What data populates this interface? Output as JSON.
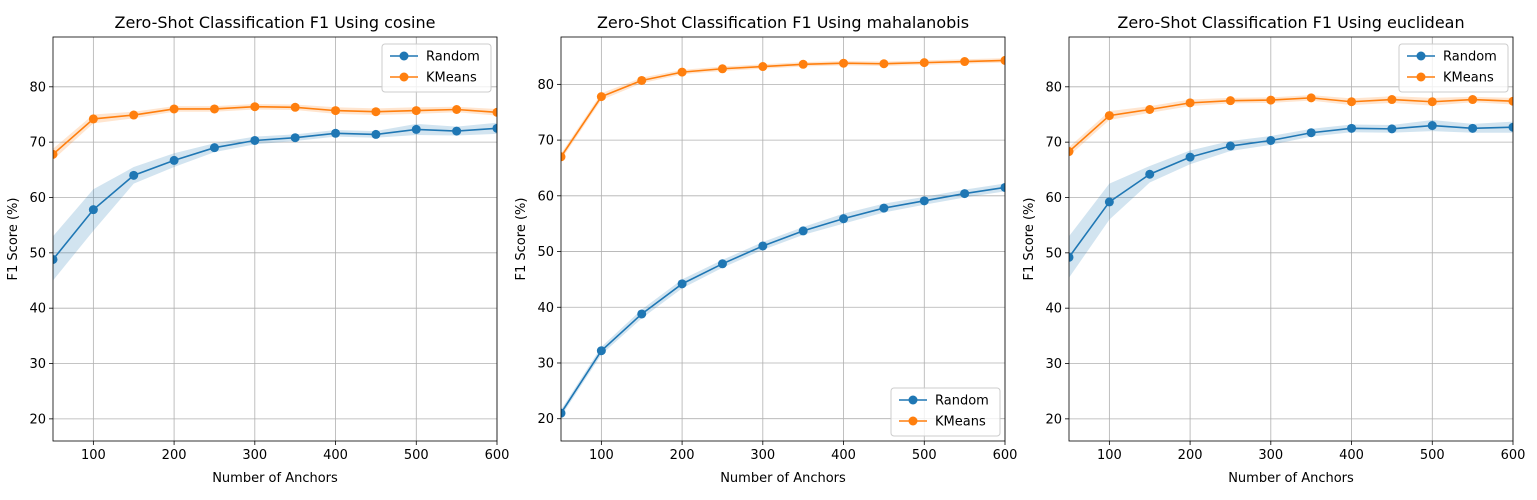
{
  "colors": {
    "random": "#1f77b4",
    "kmeans": "#ff7f0e",
    "grid": "#b0b0b0",
    "axis": "#000000"
  },
  "chart_data": [
    {
      "type": "line",
      "title": "Zero-Shot Classification F1 Using cosine",
      "xlabel": "Number of Anchors",
      "ylabel": "F1 Score (%)",
      "x": [
        50,
        100,
        150,
        200,
        250,
        300,
        350,
        400,
        450,
        500,
        550,
        600
      ],
      "xlim": [
        50,
        600
      ],
      "ylim": [
        16,
        89
      ],
      "xticks": [
        100,
        200,
        300,
        400,
        500,
        600
      ],
      "yticks": [
        20,
        30,
        40,
        50,
        60,
        70,
        80
      ],
      "grid": true,
      "legend_position": "top-right",
      "series": [
        {
          "name": "Random",
          "color": "#1f77b4",
          "values": [
            48.8,
            57.8,
            64.0,
            66.7,
            69.0,
            70.3,
            70.8,
            71.6,
            71.4,
            72.3,
            72.0,
            72.5
          ],
          "lower": [
            45.0,
            54.0,
            62.5,
            65.5,
            68.2,
            69.6,
            70.2,
            71.0,
            70.8,
            71.3,
            71.2,
            71.5
          ],
          "upper": [
            53.0,
            61.5,
            65.5,
            68.0,
            69.8,
            71.0,
            71.4,
            72.2,
            72.0,
            73.3,
            72.8,
            73.5
          ]
        },
        {
          "name": "KMeans",
          "color": "#ff7f0e",
          "values": [
            67.8,
            74.2,
            74.9,
            76.0,
            76.0,
            76.4,
            76.3,
            75.7,
            75.5,
            75.7,
            75.9,
            75.4
          ],
          "lower": [
            66.8,
            73.4,
            74.3,
            75.5,
            75.5,
            75.9,
            75.8,
            75.1,
            74.9,
            75.1,
            75.4,
            74.8
          ],
          "upper": [
            68.8,
            75.0,
            75.5,
            76.5,
            76.5,
            76.9,
            76.8,
            76.3,
            76.1,
            76.3,
            76.4,
            76.0
          ]
        }
      ]
    },
    {
      "type": "line",
      "title": "Zero-Shot Classification F1 Using mahalanobis",
      "xlabel": "Number of Anchors",
      "ylabel": "F1 Score (%)",
      "x": [
        50,
        100,
        150,
        200,
        250,
        300,
        350,
        400,
        450,
        500,
        550,
        600
      ],
      "xlim": [
        50,
        600
      ],
      "ylim": [
        16,
        88.5
      ],
      "xticks": [
        100,
        200,
        300,
        400,
        500,
        600
      ],
      "yticks": [
        20,
        30,
        40,
        50,
        60,
        70,
        80
      ],
      "grid": true,
      "legend_position": "bottom-right",
      "series": [
        {
          "name": "Random",
          "color": "#1f77b4",
          "values": [
            21.0,
            32.2,
            38.8,
            44.2,
            47.8,
            51.0,
            53.7,
            55.9,
            57.8,
            59.1,
            60.4,
            61.5
          ],
          "lower": [
            20.4,
            31.5,
            38.0,
            43.4,
            47.1,
            50.3,
            53.0,
            55.0,
            57.0,
            58.4,
            59.7,
            60.8
          ],
          "upper": [
            21.6,
            32.9,
            39.6,
            45.0,
            48.5,
            51.7,
            54.4,
            56.8,
            58.6,
            59.8,
            61.1,
            62.2
          ]
        },
        {
          "name": "KMeans",
          "color": "#ff7f0e",
          "values": [
            67.0,
            77.8,
            80.7,
            82.2,
            82.8,
            83.2,
            83.6,
            83.8,
            83.7,
            83.9,
            84.1,
            84.3
          ],
          "lower": [
            66.4,
            77.2,
            80.2,
            81.8,
            82.4,
            82.8,
            83.2,
            83.4,
            83.3,
            83.5,
            83.7,
            83.9
          ],
          "upper": [
            67.6,
            78.4,
            81.2,
            82.6,
            83.2,
            83.6,
            84.0,
            84.2,
            84.1,
            84.3,
            84.5,
            84.7
          ]
        }
      ]
    },
    {
      "type": "line",
      "title": "Zero-Shot Classification F1 Using euclidean",
      "xlabel": "Number of Anchors",
      "ylabel": "F1 Score (%)",
      "x": [
        50,
        100,
        150,
        200,
        250,
        300,
        350,
        400,
        450,
        500,
        550,
        600
      ],
      "xlim": [
        50,
        600
      ],
      "ylim": [
        16,
        89
      ],
      "xticks": [
        100,
        200,
        300,
        400,
        500,
        600
      ],
      "yticks": [
        20,
        30,
        40,
        50,
        60,
        70,
        80
      ],
      "grid": true,
      "legend_position": "top-right",
      "series": [
        {
          "name": "Random",
          "color": "#1f77b4",
          "values": [
            49.2,
            59.2,
            64.2,
            67.3,
            69.3,
            70.3,
            71.7,
            72.5,
            72.4,
            73.0,
            72.5,
            72.7
          ],
          "lower": [
            45.5,
            56.0,
            62.7,
            66.0,
            68.4,
            69.5,
            71.0,
            71.8,
            71.7,
            72.0,
            71.7,
            71.7
          ],
          "upper": [
            53.0,
            62.5,
            65.7,
            68.5,
            70.2,
            71.1,
            72.4,
            73.2,
            73.1,
            74.0,
            73.3,
            73.7
          ]
        },
        {
          "name": "KMeans",
          "color": "#ff7f0e",
          "values": [
            68.3,
            74.8,
            75.9,
            77.1,
            77.5,
            77.6,
            78.0,
            77.3,
            77.7,
            77.3,
            77.7,
            77.4
          ],
          "lower": [
            67.5,
            74.0,
            75.3,
            76.5,
            77.0,
            77.1,
            77.5,
            76.7,
            77.1,
            76.6,
            77.2,
            76.8
          ],
          "upper": [
            69.1,
            75.6,
            76.5,
            77.7,
            78.0,
            78.1,
            78.5,
            77.9,
            78.3,
            78.0,
            78.2,
            78.0
          ]
        }
      ]
    }
  ]
}
